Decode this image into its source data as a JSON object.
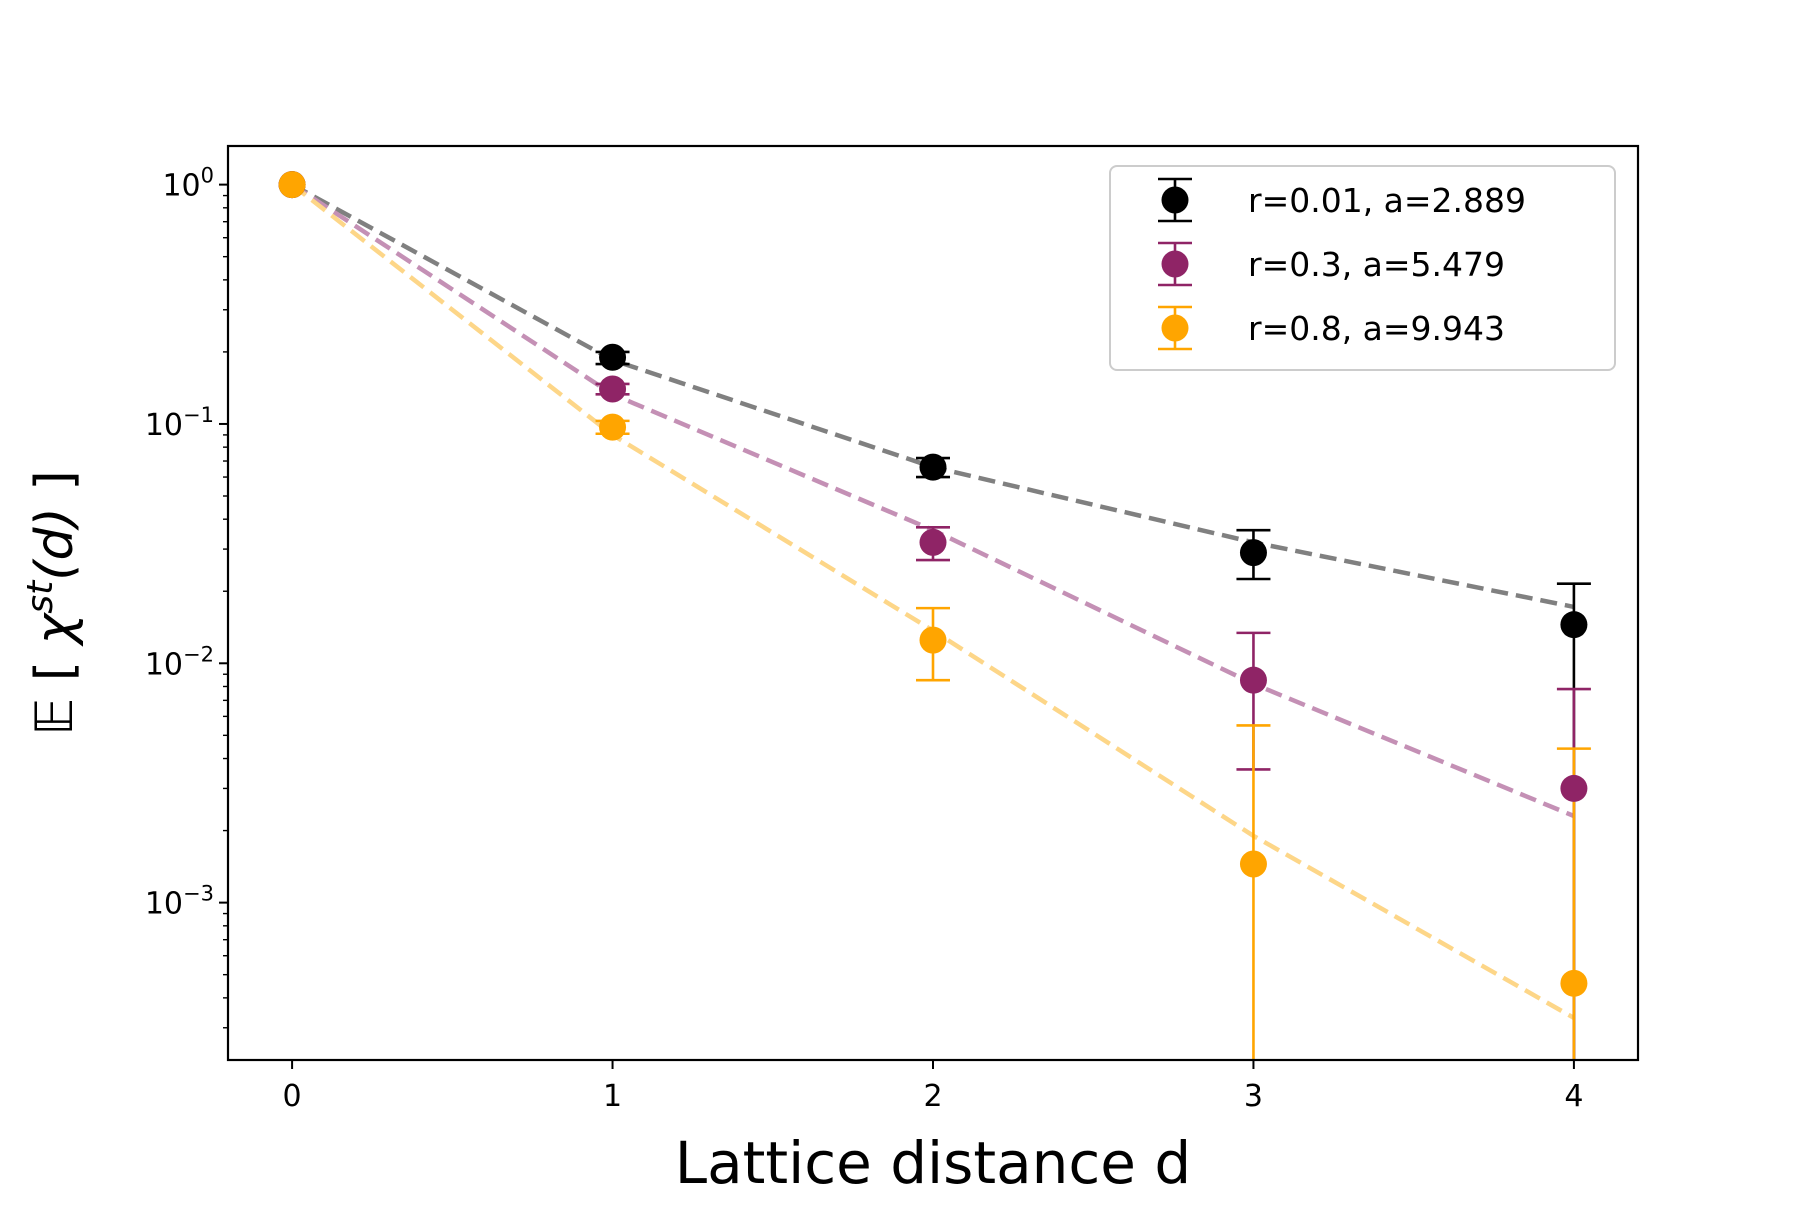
{
  "chart_data": {
    "type": "scatter",
    "title": "",
    "xlabel": "Lattice distance d",
    "ylabel": {
      "prefix": "𝔼 [ ",
      "symbol": "χ",
      "superscript": "st",
      "argument": "(d)",
      "suffix": " ]"
    },
    "xscale": "linear",
    "yscale": "log",
    "xlim": [
      -0.2,
      4.2
    ],
    "ylim": [
      0.00022,
      1.45
    ],
    "xticks": [
      0,
      1,
      2,
      3,
      4
    ],
    "xtick_labels": [
      "0",
      "1",
      "2",
      "3",
      "4"
    ],
    "yticks": [
      {
        "value": 1,
        "base": "10",
        "exp": "0"
      },
      {
        "value": 0.1,
        "base": "10",
        "exp": "−1"
      },
      {
        "value": 0.01,
        "base": "10",
        "exp": "−2"
      },
      {
        "value": 0.001,
        "base": "10",
        "exp": "−3"
      }
    ],
    "grid": false,
    "legend_position": "top-right",
    "series": [
      {
        "name": "r=0.01, a=2.889",
        "color": "#000000",
        "fit_color": "#808080",
        "x": [
          0,
          1,
          2,
          3,
          4
        ],
        "y": [
          1.0,
          0.19,
          0.066,
          0.029,
          0.0145
        ],
        "err_low": [
          1.0,
          0.178,
          0.06,
          0.0225,
          0.0
        ],
        "err_high": [
          1.0,
          0.2,
          0.072,
          0.036,
          0.0215
        ],
        "fit": [
          1.0,
          0.185,
          0.066,
          0.032,
          0.0172
        ]
      },
      {
        "name": "r=0.3, a=5.479",
        "color": "#8f2466",
        "fit_color": "#c490b5",
        "x": [
          0,
          1,
          2,
          3,
          4
        ],
        "y": [
          1.0,
          0.14,
          0.032,
          0.0085,
          0.003
        ],
        "err_low": [
          1.0,
          0.133,
          0.027,
          0.0036,
          0.0
        ],
        "err_high": [
          1.0,
          0.147,
          0.037,
          0.0134,
          0.0078
        ],
        "fit": [
          1.0,
          0.133,
          0.036,
          0.0082,
          0.0023
        ]
      },
      {
        "name": "r=0.8, a=9.943",
        "color": "#ffa500",
        "fit_color": "#fdd688",
        "x": [
          0,
          1,
          2,
          3,
          4
        ],
        "y": [
          1.0,
          0.097,
          0.0125,
          0.00145,
          0.00046
        ],
        "err_low": [
          1.0,
          0.091,
          0.0085,
          0.0,
          0.0
        ],
        "err_high": [
          1.0,
          0.103,
          0.017,
          0.0055,
          0.0044
        ],
        "fit": [
          1.0,
          0.09,
          0.0137,
          0.0019,
          0.00033
        ]
      }
    ]
  }
}
